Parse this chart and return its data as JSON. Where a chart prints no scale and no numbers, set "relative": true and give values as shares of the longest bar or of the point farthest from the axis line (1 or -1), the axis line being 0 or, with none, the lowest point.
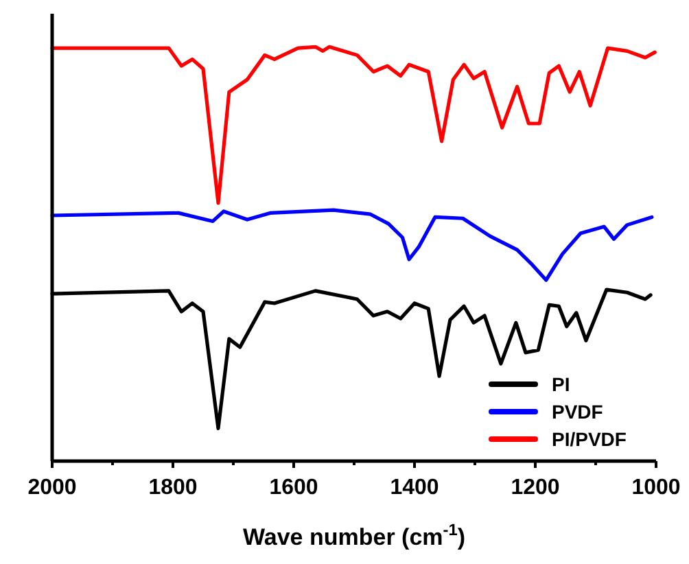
{
  "chart_data": {
    "type": "line",
    "relative": true,
    "xlabel": "Wave number (cm$^{-1}$)",
    "xlim": [
      2000,
      1000
    ],
    "xticks": [
      2000,
      {
        "value": 1900,
        "label": null
      },
      1800,
      {
        "value": 1700,
        "label": null
      },
      1600,
      {
        "value": 1500,
        "label": null
      },
      1400,
      {
        "value": 1300,
        "label": null
      },
      1200,
      {
        "value": 1100,
        "label": null
      },
      1000
    ],
    "tick_labels": "x",
    "legend": "bottom right",
    "grid": false,
    "line_style": "solid",
    "series": [
      {
        "name": "PI",
        "color": "#000000",
        "x": [
          2000,
          1807,
          1786,
          1768,
          1750,
          1725,
          1707,
          1689,
          1648,
          1632,
          1564,
          1495,
          1468,
          1445,
          1423,
          1400,
          1377,
          1359,
          1341,
          1318,
          1302,
          1284,
          1257,
          1232,
          1216,
          1195,
          1177,
          1161,
          1148,
          1132,
          1116,
          1082,
          1048,
          1018,
          1009
        ],
        "values": [
          0.404,
          0.411,
          0.361,
          0.381,
          0.361,
          0.079,
          0.295,
          0.275,
          0.384,
          0.381,
          0.411,
          0.391,
          0.351,
          0.361,
          0.344,
          0.381,
          0.368,
          0.205,
          0.341,
          0.374,
          0.334,
          0.351,
          0.235,
          0.334,
          0.262,
          0.268,
          0.377,
          0.374,
          0.325,
          0.358,
          0.291,
          0.414,
          0.407,
          0.391,
          0.401
        ]
      },
      {
        "name": "PVDF",
        "color": "#0000ff",
        "x": [
          2000,
          1791,
          1734,
          1716,
          1677,
          1639,
          1534,
          1473,
          1443,
          1420,
          1409,
          1393,
          1366,
          1320,
          1275,
          1230,
          1207,
          1182,
          1155,
          1125,
          1086,
          1070,
          1048,
          1007
        ],
        "values": [
          0.593,
          0.599,
          0.579,
          0.603,
          0.583,
          0.599,
          0.606,
          0.596,
          0.573,
          0.54,
          0.487,
          0.517,
          0.589,
          0.586,
          0.543,
          0.51,
          0.477,
          0.437,
          0.5,
          0.55,
          0.566,
          0.536,
          0.57,
          0.589
        ]
      },
      {
        "name": "PI/PVDF",
        "color": "#ff0000",
        "x": [
          2000,
          1807,
          1786,
          1768,
          1750,
          1725,
          1707,
          1677,
          1648,
          1632,
          1593,
          1564,
          1552,
          1541,
          1495,
          1468,
          1445,
          1423,
          1409,
          1377,
          1355,
          1336,
          1318,
          1302,
          1284,
          1255,
          1230,
          1211,
          1193,
          1177,
          1161,
          1143,
          1127,
          1109,
          1080,
          1048,
          1018,
          1002
        ],
        "values": [
          0.997,
          0.997,
          0.954,
          0.97,
          0.947,
          0.623,
          0.891,
          0.921,
          0.98,
          0.97,
          0.997,
          1,
          0.99,
          1,
          0.98,
          0.94,
          0.954,
          0.93,
          0.957,
          0.94,
          0.772,
          0.921,
          0.957,
          0.924,
          0.94,
          0.805,
          0.904,
          0.815,
          0.815,
          0.937,
          0.954,
          0.891,
          0.94,
          0.858,
          0.997,
          0.99,
          0.974,
          0.987
        ]
      }
    ]
  }
}
